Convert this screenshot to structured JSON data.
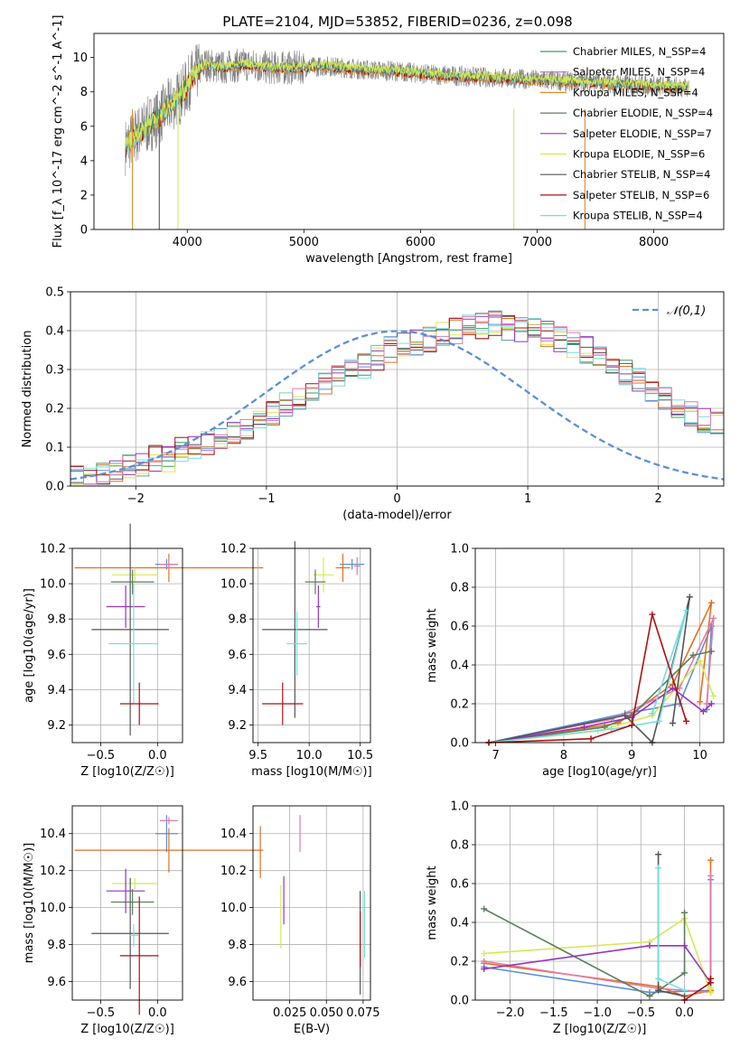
{
  "figure_title": "PLATE=2104, MJD=53852, FIBERID=0236, z=0.098",
  "series_colors": [
    "#3a9a6a",
    "#b06fcf",
    "#e08a2a",
    "#5c7f5c",
    "#9933bb",
    "#d6e855",
    "#555555",
    "#aa1111",
    "#77dddd"
  ],
  "chart_data": [
    {
      "type": "line",
      "title": "PLATE=2104, MJD=53852, FIBERID=0236, z=0.098",
      "xlabel": "wavelength [Angstrom, rest frame]",
      "ylabel": "Flux [f_λ 10^-17 erg cm^-2 s^-1 A^-1]",
      "xlim": [
        3200,
        8600
      ],
      "ylim": [
        0,
        11.4
      ],
      "xticks": [
        4000,
        5000,
        6000,
        7000,
        8000
      ],
      "yticks": [
        0,
        2,
        4,
        6,
        8,
        10
      ],
      "grid": false,
      "legend_position": "upper-right",
      "legend": [
        {
          "name": "Chabrier MILES, N_SSP=4",
          "color": "#3a9a6a"
        },
        {
          "name": "Salpeter MILES, N_SSP=4",
          "color": "#b06fcf"
        },
        {
          "name": "Kroupa MILES, N_SSP=4",
          "color": "#e08a2a"
        },
        {
          "name": "Chabrier ELODIE, N_SSP=4",
          "color": "#5c7f5c"
        },
        {
          "name": "Salpeter ELODIE, N_SSP=7",
          "color": "#9933bb"
        },
        {
          "name": "Kroupa ELODIE, N_SSP=6",
          "color": "#d6e855"
        },
        {
          "name": "Chabrier STELIB, N_SSP=4",
          "color": "#555555"
        },
        {
          "name": "Salpeter STELIB, N_SSP=6",
          "color": "#aa1111"
        },
        {
          "name": "Kroupa STELIB, N_SSP=4",
          "color": "#77dddd"
        }
      ],
      "spectrum_envelope": {
        "wavelength": [
          3470,
          3550,
          3650,
          3750,
          3850,
          3950,
          4050,
          4150,
          4300,
          4500,
          4700,
          4900,
          5200,
          5500,
          5800,
          6100,
          6400,
          6700,
          7000,
          7300,
          7600,
          7900,
          8200,
          8300
        ],
        "flux": [
          4.8,
          5.4,
          6.0,
          6.5,
          7.2,
          7.8,
          8.9,
          9.6,
          9.4,
          9.6,
          9.4,
          9.4,
          9.5,
          9.3,
          9.2,
          9.0,
          8.9,
          8.8,
          8.7,
          8.6,
          8.5,
          8.4,
          8.3,
          8.3
        ]
      }
    },
    {
      "type": "histogram",
      "xlabel": "(data-model)/error",
      "ylabel": "Normed distribution",
      "xlim": [
        -2.5,
        2.5
      ],
      "ylim": [
        0,
        0.5
      ],
      "xticks": [
        -2,
        -1,
        0,
        1,
        2
      ],
      "yticks": [
        0.0,
        0.1,
        0.2,
        0.3,
        0.4,
        0.5
      ],
      "grid": true,
      "legend_position": "upper-right",
      "legend": [
        {
          "name": "𝒩(0,1)",
          "style": "dashed",
          "color": "#5b8fd9"
        }
      ],
      "bin_width": 0.1,
      "bin_start": -2.5,
      "histogram_envelope": [
        0.02,
        0.02,
        0.03,
        0.04,
        0.05,
        0.06,
        0.07,
        0.07,
        0.09,
        0.1,
        0.11,
        0.12,
        0.14,
        0.15,
        0.17,
        0.19,
        0.21,
        0.22,
        0.24,
        0.26,
        0.28,
        0.3,
        0.31,
        0.33,
        0.35,
        0.36,
        0.37,
        0.38,
        0.39,
        0.4,
        0.41,
        0.41,
        0.42,
        0.41,
        0.4,
        0.4,
        0.39,
        0.38,
        0.36,
        0.35,
        0.33,
        0.31,
        0.29,
        0.27,
        0.25,
        0.23,
        0.21,
        0.19,
        0.17,
        0.16
      ]
    },
    {
      "type": "scatter",
      "xlabel": "Z [log10(Z/Z☉)]",
      "ylabel": "age [log10(age/yr)]",
      "xlim": [
        -0.75,
        0.22
      ],
      "ylim": [
        9.1,
        10.2
      ],
      "xticks": [
        -0.5,
        0.0
      ],
      "yticks": [
        9.2,
        9.4,
        9.6,
        9.8,
        10.0,
        10.2
      ],
      "grid": true,
      "points": [
        {
          "x": 0.08,
          "y": 10.11,
          "xerr": 0.1,
          "yerr": 0.03,
          "color": "#5b8fd9"
        },
        {
          "x": 0.1,
          "y": 10.09,
          "xerr": 0.83,
          "yerr": 0.08,
          "color": "#e07020"
        },
        {
          "x": 0.1,
          "y": 10.11,
          "xerr": 0.08,
          "yerr": 0.03,
          "color": "#e07aaa"
        },
        {
          "x": -0.2,
          "y": 10.05,
          "xerr": 0.2,
          "yerr": 0.04,
          "color": "#d6e855"
        },
        {
          "x": -0.22,
          "y": 10.01,
          "xerr": 0.19,
          "yerr": 0.07,
          "color": "#5c7f5c"
        },
        {
          "x": -0.28,
          "y": 9.87,
          "xerr": 0.17,
          "yerr": 0.12,
          "color": "#9933bb"
        },
        {
          "x": -0.24,
          "y": 9.74,
          "xerr": 0.34,
          "yerr": 0.6,
          "color": "#555555"
        },
        {
          "x": -0.21,
          "y": 9.66,
          "xerr": 0.22,
          "yerr": 0.34,
          "color": "#77dddd"
        },
        {
          "x": -0.16,
          "y": 9.32,
          "xerr": 0.17,
          "yerr": 0.12,
          "color": "#aa1111"
        }
      ]
    },
    {
      "type": "scatter",
      "xlabel": "mass [log10(M/M☉)]",
      "ylabel": "",
      "xlim": [
        9.45,
        10.6
      ],
      "ylim": [
        9.1,
        10.2
      ],
      "xticks": [
        9.5,
        10.0,
        10.5
      ],
      "yticks": [
        9.2,
        9.4,
        9.6,
        9.8,
        10.0,
        10.2
      ],
      "grid": true,
      "points": [
        {
          "x": 10.42,
          "y": 10.11,
          "xerr": 0.12,
          "yerr": 0.03,
          "color": "#5b8fd9"
        },
        {
          "x": 10.33,
          "y": 10.09,
          "xerr": 0.07,
          "yerr": 0.08,
          "color": "#e07020"
        },
        {
          "x": 10.47,
          "y": 10.1,
          "xerr": 0.03,
          "yerr": 0.05,
          "color": "#e07aaa"
        },
        {
          "x": 10.14,
          "y": 10.05,
          "xerr": 0.1,
          "yerr": 0.1,
          "color": "#d6e855"
        },
        {
          "x": 10.06,
          "y": 10.01,
          "xerr": 0.1,
          "yerr": 0.07,
          "color": "#5c7f5c"
        },
        {
          "x": 10.09,
          "y": 9.87,
          "xerr": 0.02,
          "yerr": 0.12,
          "color": "#9933bb"
        },
        {
          "x": 9.86,
          "y": 9.74,
          "xerr": 0.32,
          "yerr": 0.5,
          "color": "#555555"
        },
        {
          "x": 9.88,
          "y": 9.66,
          "xerr": 0.1,
          "yerr": 0.18,
          "color": "#77dddd"
        },
        {
          "x": 9.74,
          "y": 9.32,
          "xerr": 0.2,
          "yerr": 0.12,
          "color": "#aa1111"
        }
      ]
    },
    {
      "type": "line",
      "xlabel": "age [log10(age/yr)]",
      "ylabel": "mass weight",
      "xlim": [
        6.7,
        10.35
      ],
      "ylim": [
        0,
        1.0
      ],
      "xticks": [
        7,
        8,
        9,
        10
      ],
      "yticks": [
        0.0,
        0.2,
        0.4,
        0.6,
        0.8,
        1.0
      ],
      "grid": true,
      "series": [
        {
          "color": "#5b8fd9",
          "x": [
            6.9,
            8.9,
            9.7,
            10.17,
            10.1
          ],
          "y": [
            0.0,
            0.15,
            0.2,
            0.6,
            0.17
          ]
        },
        {
          "color": "#e07020",
          "x": [
            6.9,
            8.8,
            9.6,
            10.17,
            10.0
          ],
          "y": [
            0.0,
            0.1,
            0.3,
            0.72,
            0.21
          ]
        },
        {
          "color": "#e07aaa",
          "x": [
            6.9,
            8.7,
            9.7,
            10.2,
            10.1
          ],
          "y": [
            0.0,
            0.12,
            0.28,
            0.64,
            0.2
          ]
        },
        {
          "color": "#d6e855",
          "x": [
            6.9,
            8.5,
            9.3,
            10.0,
            10.2
          ],
          "y": [
            0.0,
            0.06,
            0.14,
            0.42,
            0.24
          ]
        },
        {
          "color": "#5c7f5c",
          "x": [
            6.9,
            8.6,
            9.0,
            9.9,
            10.17
          ],
          "y": [
            0.0,
            0.08,
            0.14,
            0.45,
            0.47
          ]
        },
        {
          "color": "#9933bb",
          "x": [
            6.9,
            8.3,
            9.0,
            9.6,
            10.05,
            10.17
          ],
          "y": [
            0.0,
            0.08,
            0.13,
            0.28,
            0.16,
            0.2
          ]
        },
        {
          "color": "#555555",
          "x": [
            6.9,
            8.9,
            9.3,
            9.85,
            9.6
          ],
          "y": [
            0.0,
            0.14,
            0.0,
            0.75,
            0.1
          ]
        },
        {
          "color": "#77dddd",
          "x": [
            6.9,
            8.7,
            9.4,
            9.8,
            9.3
          ],
          "y": [
            0.0,
            0.07,
            0.11,
            0.68,
            0.15
          ]
        },
        {
          "color": "#aa1111",
          "x": [
            6.9,
            8.4,
            9.0,
            9.3,
            9.8
          ],
          "y": [
            0.0,
            0.02,
            0.09,
            0.66,
            0.11
          ]
        }
      ]
    },
    {
      "type": "scatter",
      "xlabel": "Z [log10(Z/Z☉)]",
      "ylabel": "mass [log10(M/M☉)]",
      "xlim": [
        -0.75,
        0.22
      ],
      "ylim": [
        9.5,
        10.55
      ],
      "xticks": [
        -0.5,
        0.0
      ],
      "yticks": [
        9.6,
        9.8,
        10.0,
        10.2,
        10.4
      ],
      "grid": true,
      "points": [
        {
          "x": 0.08,
          "y": 10.4,
          "xerr": 0.1,
          "yerr": 0.1,
          "color": "#5b8fd9"
        },
        {
          "x": 0.1,
          "y": 10.31,
          "xerr": 0.83,
          "yerr": 0.12,
          "color": "#e07020"
        },
        {
          "x": 0.1,
          "y": 10.47,
          "xerr": 0.08,
          "yerr": 0.02,
          "color": "#e07aaa"
        },
        {
          "x": -0.2,
          "y": 10.13,
          "xerr": 0.2,
          "yerr": 0.03,
          "color": "#d6e855"
        },
        {
          "x": -0.22,
          "y": 10.03,
          "xerr": 0.19,
          "yerr": 0.07,
          "color": "#5c7f5c"
        },
        {
          "x": -0.28,
          "y": 10.09,
          "xerr": 0.17,
          "yerr": 0.12,
          "color": "#9933bb"
        },
        {
          "x": -0.24,
          "y": 9.86,
          "xerr": 0.34,
          "yerr": 0.3,
          "color": "#555555"
        },
        {
          "x": -0.21,
          "y": 9.85,
          "xerr": 0.04,
          "yerr": 0.06,
          "color": "#77dddd"
        },
        {
          "x": -0.16,
          "y": 9.74,
          "xerr": 0.17,
          "yerr": 0.32,
          "color": "#aa1111"
        }
      ]
    },
    {
      "type": "scatter",
      "xlabel": "E(B-V)",
      "ylabel": "",
      "xlim": [
        0.0,
        0.08
      ],
      "ylim": [
        9.5,
        10.55
      ],
      "xticks": [
        0.025,
        0.05,
        0.075
      ],
      "xtick_labels": [
        "0.025",
        "0.050",
        "0.075"
      ],
      "yticks": [
        9.6,
        9.8,
        10.0,
        10.2,
        10.4
      ],
      "grid": true,
      "points": [
        {
          "x": 0.032,
          "y": 10.4,
          "yerr": 0.1,
          "color": "#e07aaa"
        },
        {
          "x": 0.005,
          "y": 10.3,
          "yerr": 0.14,
          "color": "#e07020"
        },
        {
          "x": 0.019,
          "y": 9.95,
          "yerr": 0.17,
          "color": "#d6e855"
        },
        {
          "x": 0.021,
          "y": 10.04,
          "yerr": 0.13,
          "color": "#9933bb"
        },
        {
          "x": 0.073,
          "y": 9.81,
          "yerr": 0.28,
          "color": "#555555"
        },
        {
          "x": 0.073,
          "y": 9.83,
          "yerr": 0.15,
          "color": "#aa1111"
        },
        {
          "x": 0.076,
          "y": 9.91,
          "yerr": 0.18,
          "color": "#77dddd"
        }
      ]
    },
    {
      "type": "line",
      "xlabel": "Z [log10(Z/Z☉)]",
      "ylabel": "mass weight",
      "xlim": [
        -2.4,
        0.45
      ],
      "ylim": [
        0,
        1.0
      ],
      "xticks": [
        -2.0,
        -1.5,
        -1.0,
        -0.5,
        0.0
      ],
      "yticks": [
        0.0,
        0.2,
        0.4,
        0.6,
        0.8,
        1.0
      ],
      "grid": true,
      "series": [
        {
          "color": "#5b8fd9",
          "x": [
            -2.3,
            -0.4,
            0.3,
            0.3
          ],
          "y": [
            0.17,
            0.04,
            0.05,
            0.62
          ]
        },
        {
          "color": "#e07020",
          "x": [
            -2.3,
            -0.3,
            0.0,
            0.3,
            0.3
          ],
          "y": [
            0.19,
            0.07,
            0.02,
            0.05,
            0.72
          ]
        },
        {
          "color": "#e07aaa",
          "x": [
            -2.3,
            -0.3,
            0.3,
            0.3
          ],
          "y": [
            0.2,
            0.06,
            0.04,
            0.64
          ]
        },
        {
          "color": "#d6e855",
          "x": [
            -2.3,
            -0.4,
            0.0,
            0.3,
            0.3
          ],
          "y": [
            0.24,
            0.3,
            0.42,
            0.04,
            0.06
          ]
        },
        {
          "color": "#5c7f5c",
          "x": [
            -2.3,
            -0.4,
            0.0,
            0.0
          ],
          "y": [
            0.47,
            0.02,
            0.14,
            0.45
          ]
        },
        {
          "color": "#9933bb",
          "x": [
            -2.3,
            -0.4,
            0.0,
            0.3
          ],
          "y": [
            0.16,
            0.28,
            0.28,
            0.09
          ]
        },
        {
          "color": "#555555",
          "x": [
            -0.3,
            -0.3,
            0.0
          ],
          "y": [
            0.75,
            0.05,
            0.02
          ]
        },
        {
          "color": "#77dddd",
          "x": [
            -0.3,
            -0.3,
            0.0
          ],
          "y": [
            0.68,
            0.11,
            0.05
          ]
        },
        {
          "color": "#aa1111",
          "x": [
            0.0,
            0.3,
            0.3
          ],
          "y": [
            0.0,
            0.09,
            0.11
          ]
        }
      ]
    }
  ]
}
